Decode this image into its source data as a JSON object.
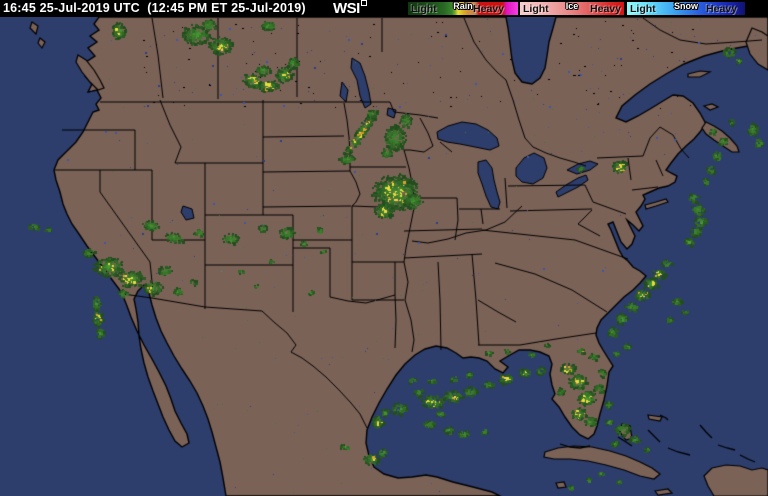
{
  "header": {
    "timestamp": "16:45 25-Jul-2019 UTC  (12:45 PM ET 25-Jul-2019)",
    "logo": "WSI",
    "bg": "#000000",
    "fg": "#ffffff"
  },
  "legend": {
    "rain": {
      "title": "Rain",
      "light": "Light",
      "heavy": "Heavy",
      "stops": [
        [
          0,
          "#0f360f"
        ],
        [
          0.2,
          "#1d4f1b"
        ],
        [
          0.33,
          "#2a6a24"
        ],
        [
          0.4,
          "#38862c"
        ],
        [
          0.43,
          "#7fae2e"
        ],
        [
          0.455,
          "#e8df39"
        ],
        [
          0.5,
          "#ddb122"
        ],
        [
          0.545,
          "#d29038"
        ],
        [
          0.61,
          "#c4875c"
        ],
        [
          0.645,
          "#cb1212"
        ],
        [
          0.86,
          "#cb1212"
        ],
        [
          0.895,
          "#dd14bc"
        ],
        [
          1,
          "#f73fe3"
        ]
      ]
    },
    "ice": {
      "title": "Ice",
      "light": "Light",
      "heavy": "Heavy",
      "stops": [
        [
          0,
          "#f6cfcf"
        ],
        [
          0.25,
          "#f0adad"
        ],
        [
          0.5,
          "#e88383"
        ],
        [
          0.72,
          "#e05252"
        ],
        [
          0.88,
          "#d92525"
        ],
        [
          1,
          "#d41414"
        ]
      ]
    },
    "snow": {
      "title": "Snow",
      "light": "Light",
      "heavy": "Heavy",
      "stops": [
        [
          0,
          "#8ffcfc"
        ],
        [
          0.2,
          "#5fd8f8"
        ],
        [
          0.42,
          "#3a9df0"
        ],
        [
          0.6,
          "#2a62e0"
        ],
        [
          0.78,
          "#1e35c0"
        ],
        [
          0.92,
          "#151d96"
        ],
        [
          1,
          "#101270"
        ]
      ]
    }
  },
  "map": {
    "colors": {
      "ocean": "#2d3e6d",
      "land": "#7b6257",
      "coast": "#000000",
      "border": "#000000",
      "noise_blue": "#3d57ab",
      "noise_blue_dark": "#2c3f85",
      "lake_dot": "#000000",
      "speck_green": "#3c7a2b",
      "speck_cyan": "#2e9e8e",
      "radar_greens": [
        "#234d1e",
        "#2a5a22",
        "#316a26",
        "#38762a",
        "#3c7f2c",
        "#449032",
        "#4f9a33"
      ],
      "radar_yellow": "#e8dc3c",
      "radar_gold": "#dba428",
      "radar_orange": "#e09126",
      "radar_red": "#d23b28"
    },
    "radar_cluster_format": "[cx, cy, rx, ry, rot_deg, has_yellow, has_orange] in screenshot pixel coords",
    "radar_clusters": [
      [
        118,
        30,
        7,
        9,
        0,
        1,
        1
      ],
      [
        196,
        34,
        15,
        11,
        0,
        0,
        0
      ],
      [
        220,
        45,
        13,
        9,
        0,
        1,
        0
      ],
      [
        208,
        24,
        8,
        6,
        0,
        0,
        0
      ],
      [
        252,
        80,
        11,
        7,
        20,
        1,
        0
      ],
      [
        267,
        85,
        12,
        6,
        0,
        1,
        1
      ],
      [
        283,
        74,
        9,
        8,
        -30,
        1,
        0
      ],
      [
        292,
        62,
        6,
        6,
        0,
        0,
        0
      ],
      [
        262,
        70,
        8,
        5,
        0,
        0,
        0
      ],
      [
        268,
        25,
        8,
        5,
        0,
        0,
        0
      ],
      [
        360,
        132,
        30,
        5,
        125,
        1,
        1
      ],
      [
        346,
        158,
        8,
        5,
        0,
        0,
        0
      ],
      [
        371,
        113,
        6,
        4,
        0,
        0,
        0
      ],
      [
        394,
        137,
        11,
        13,
        0,
        0,
        0
      ],
      [
        405,
        120,
        6,
        7,
        0,
        0,
        0
      ],
      [
        386,
        152,
        6,
        5,
        0,
        0,
        0
      ],
      [
        395,
        192,
        24,
        19,
        0,
        1,
        0
      ],
      [
        383,
        210,
        10,
        8,
        0,
        1,
        0
      ],
      [
        412,
        200,
        10,
        8,
        0,
        0,
        0
      ],
      [
        150,
        225,
        9,
        5,
        20,
        0,
        0
      ],
      [
        173,
        237,
        10,
        5,
        15,
        0,
        0
      ],
      [
        198,
        232,
        5,
        4,
        0,
        0,
        0
      ],
      [
        230,
        238,
        9,
        5,
        0,
        0,
        0
      ],
      [
        262,
        228,
        5,
        4,
        0,
        0,
        0
      ],
      [
        286,
        232,
        9,
        6,
        0,
        0,
        0
      ],
      [
        303,
        243,
        4,
        3,
        0,
        0,
        0
      ],
      [
        318,
        230,
        4,
        3,
        0,
        0,
        0
      ],
      [
        108,
        266,
        16,
        10,
        0,
        1,
        0
      ],
      [
        130,
        278,
        14,
        9,
        0,
        1,
        0
      ],
      [
        152,
        287,
        10,
        7,
        0,
        1,
        0
      ],
      [
        164,
        270,
        7,
        5,
        0,
        0,
        0
      ],
      [
        96,
        302,
        5,
        7,
        0,
        0,
        0
      ],
      [
        97,
        317,
        5,
        9,
        0,
        1,
        0
      ],
      [
        99,
        332,
        4,
        6,
        0,
        0,
        0
      ],
      [
        88,
        252,
        6,
        4,
        0,
        0,
        0
      ],
      [
        122,
        293,
        6,
        4,
        0,
        0,
        0
      ],
      [
        177,
        291,
        5,
        4,
        0,
        0,
        0
      ],
      [
        192,
        282,
        4,
        3,
        0,
        0,
        0
      ],
      [
        33,
        226,
        6,
        3,
        0,
        0,
        0
      ],
      [
        47,
        229,
        4,
        2,
        0,
        0,
        0
      ],
      [
        377,
        421,
        6,
        7,
        0,
        1,
        0
      ],
      [
        384,
        412,
        4,
        4,
        0,
        1,
        0
      ],
      [
        344,
        446,
        5,
        3,
        0,
        0,
        0
      ],
      [
        371,
        459,
        9,
        6,
        0,
        1,
        0
      ],
      [
        382,
        452,
        5,
        4,
        0,
        0,
        0
      ],
      [
        398,
        408,
        9,
        6,
        0,
        0,
        0
      ],
      [
        432,
        401,
        12,
        7,
        0,
        1,
        0
      ],
      [
        452,
        396,
        10,
        6,
        0,
        1,
        0
      ],
      [
        470,
        391,
        8,
        5,
        0,
        0,
        0
      ],
      [
        487,
        384,
        6,
        4,
        0,
        0,
        0
      ],
      [
        505,
        378,
        8,
        5,
        0,
        1,
        0
      ],
      [
        524,
        372,
        7,
        4,
        0,
        1,
        0
      ],
      [
        540,
        370,
        5,
        4,
        0,
        0,
        0
      ],
      [
        428,
        424,
        7,
        4,
        0,
        0,
        0
      ],
      [
        448,
        429,
        6,
        4,
        0,
        0,
        0
      ],
      [
        463,
        433,
        6,
        4,
        0,
        0,
        0
      ],
      [
        484,
        431,
        4,
        3,
        0,
        0,
        0
      ],
      [
        440,
        413,
        5,
        3,
        0,
        0,
        0
      ],
      [
        418,
        392,
        5,
        4,
        0,
        0,
        0
      ],
      [
        412,
        380,
        4,
        3,
        0,
        0,
        0
      ],
      [
        431,
        380,
        5,
        3,
        0,
        0,
        0
      ],
      [
        453,
        378,
        4,
        3,
        0,
        0,
        0
      ],
      [
        468,
        374,
        4,
        3,
        0,
        0,
        0
      ],
      [
        567,
        368,
        8,
        6,
        0,
        1,
        0
      ],
      [
        577,
        381,
        10,
        8,
        0,
        1,
        1
      ],
      [
        586,
        397,
        10,
        8,
        0,
        1,
        0
      ],
      [
        578,
        413,
        8,
        7,
        0,
        1,
        0
      ],
      [
        590,
        421,
        6,
        5,
        0,
        0,
        0
      ],
      [
        598,
        388,
        5,
        5,
        0,
        0,
        0
      ],
      [
        601,
        372,
        4,
        4,
        0,
        0,
        0
      ],
      [
        560,
        391,
        4,
        4,
        0,
        0,
        0
      ],
      [
        593,
        356,
        5,
        3,
        0,
        0,
        0
      ],
      [
        580,
        350,
        4,
        3,
        0,
        1,
        0
      ],
      [
        608,
        404,
        4,
        4,
        0,
        0,
        1
      ],
      [
        488,
        352,
        4,
        2,
        0,
        0,
        0
      ],
      [
        506,
        350,
        3,
        2,
        0,
        0,
        0
      ],
      [
        531,
        354,
        4,
        2,
        0,
        0,
        0
      ],
      [
        546,
        345,
        3,
        2,
        0,
        0,
        0
      ],
      [
        612,
        331,
        6,
        5,
        0,
        0,
        0
      ],
      [
        621,
        318,
        7,
        5,
        0,
        0,
        0
      ],
      [
        631,
        306,
        7,
        5,
        0,
        0,
        0
      ],
      [
        641,
        294,
        8,
        6,
        0,
        1,
        0
      ],
      [
        650,
        283,
        8,
        6,
        0,
        1,
        1
      ],
      [
        658,
        273,
        7,
        5,
        0,
        1,
        0
      ],
      [
        666,
        263,
        5,
        4,
        0,
        0,
        0
      ],
      [
        676,
        301,
        5,
        4,
        0,
        0,
        0
      ],
      [
        684,
        311,
        4,
        3,
        0,
        0,
        0
      ],
      [
        669,
        319,
        4,
        3,
        0,
        0,
        0
      ],
      [
        626,
        346,
        4,
        3,
        0,
        0,
        0
      ],
      [
        616,
        353,
        4,
        3,
        0,
        0,
        0
      ],
      [
        693,
        197,
        6,
        5,
        0,
        0,
        0
      ],
      [
        697,
        209,
        7,
        6,
        0,
        0,
        0
      ],
      [
        700,
        221,
        7,
        6,
        0,
        0,
        0
      ],
      [
        695,
        231,
        6,
        5,
        0,
        0,
        0
      ],
      [
        688,
        241,
        5,
        4,
        0,
        0,
        0
      ],
      [
        705,
        181,
        4,
        4,
        0,
        0,
        0
      ],
      [
        710,
        169,
        5,
        4,
        0,
        0,
        0
      ],
      [
        716,
        155,
        5,
        5,
        0,
        0,
        0
      ],
      [
        722,
        141,
        5,
        4,
        0,
        0,
        0
      ],
      [
        712,
        131,
        4,
        3,
        0,
        0,
        0
      ],
      [
        752,
        129,
        5,
        7,
        0,
        0,
        0
      ],
      [
        758,
        142,
        4,
        5,
        0,
        0,
        0
      ],
      [
        731,
        121,
        3,
        3,
        0,
        0,
        0
      ],
      [
        619,
        166,
        8,
        7,
        0,
        1,
        0
      ],
      [
        580,
        168,
        4,
        3,
        0,
        0,
        0
      ],
      [
        728,
        52,
        7,
        5,
        0,
        0,
        0
      ],
      [
        738,
        60,
        4,
        3,
        0,
        0,
        0
      ],
      [
        622,
        429,
        8,
        7,
        0,
        0,
        0
      ],
      [
        634,
        439,
        6,
        4,
        0,
        0,
        0
      ],
      [
        614,
        443,
        4,
        3,
        0,
        0,
        0
      ],
      [
        646,
        449,
        3,
        2,
        0,
        0,
        0
      ],
      [
        608,
        421,
        4,
        3,
        0,
        0,
        0
      ],
      [
        600,
        473,
        3,
        2,
        0,
        0,
        0
      ],
      [
        618,
        481,
        3,
        2,
        0,
        0,
        0
      ],
      [
        588,
        479,
        3,
        2,
        0,
        0,
        0
      ],
      [
        570,
        487,
        3,
        2,
        0,
        0,
        0
      ],
      [
        240,
        271,
        3,
        2,
        0,
        0,
        0
      ],
      [
        256,
        286,
        3,
        2,
        0,
        0,
        0
      ],
      [
        271,
        261,
        3,
        2,
        0,
        0,
        0
      ],
      [
        322,
        251,
        3,
        2,
        0,
        0,
        0
      ],
      [
        310,
        292,
        3,
        2,
        0,
        0,
        0
      ]
    ]
  }
}
